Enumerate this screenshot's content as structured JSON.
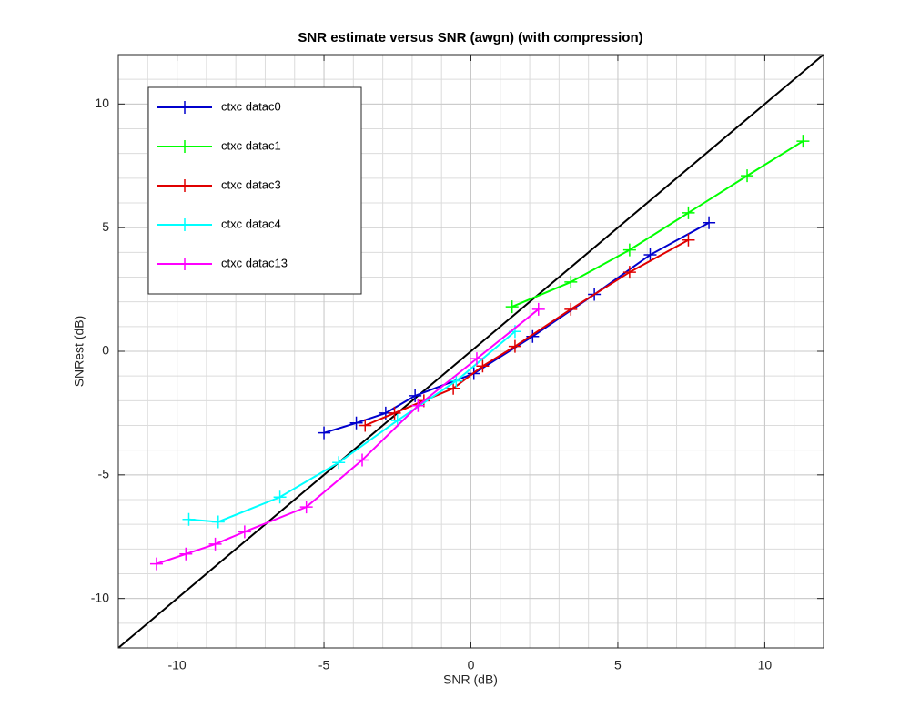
{
  "chart_data": {
    "type": "line",
    "title": "SNR estimate versus SNR (awgn) (with compression)",
    "xlabel": "SNR (dB)",
    "ylabel": "SNRest (dB)",
    "xlim": [
      -12,
      12
    ],
    "ylim": [
      -12,
      12
    ],
    "xticks": [
      -10,
      -5,
      0,
      5,
      10
    ],
    "yticks": [
      -10,
      -5,
      0,
      5,
      10
    ],
    "xminorticks": [
      -12,
      -11,
      -10,
      -9,
      -8,
      -7,
      -6,
      -5,
      -4,
      -3,
      -2,
      -1,
      0,
      1,
      2,
      3,
      4,
      5,
      6,
      7,
      8,
      9,
      10,
      11,
      12
    ],
    "yminorticks": [
      -12,
      -11,
      -10,
      -9,
      -8,
      -7,
      -6,
      -5,
      -4,
      -3,
      -2,
      -1,
      0,
      1,
      2,
      3,
      4,
      5,
      6,
      7,
      8,
      9,
      10,
      11,
      12
    ],
    "grid": true,
    "legend": "upper left",
    "reference_line": {
      "color": "#000000",
      "x": [
        -12,
        12
      ],
      "values": [
        -12,
        12
      ]
    },
    "series": [
      {
        "name": "ctxc datac0",
        "color": "#0000cd",
        "x": [
          -5.0,
          -3.9,
          -2.9,
          -1.9,
          0.1,
          2.1,
          4.2,
          6.1,
          8.1
        ],
        "values": [
          -3.3,
          -2.9,
          -2.5,
          -1.8,
          -0.9,
          0.6,
          2.3,
          3.9,
          5.2
        ]
      },
      {
        "name": "ctxc datac1",
        "color": "#00ff00",
        "x": [
          1.4,
          3.4,
          5.4,
          7.4,
          9.4,
          11.3
        ],
        "values": [
          1.8,
          2.8,
          4.1,
          5.6,
          7.1,
          8.5
        ]
      },
      {
        "name": "ctxc datac3",
        "color": "#e00000",
        "x": [
          -3.6,
          -2.6,
          -1.6,
          -0.6,
          0.4,
          1.5,
          3.4,
          5.4,
          7.4
        ],
        "values": [
          -3.0,
          -2.5,
          -2.0,
          -1.5,
          -0.6,
          0.2,
          1.7,
          3.2,
          4.5
        ]
      },
      {
        "name": "ctxc datac4",
        "color": "#00ffff",
        "x": [
          -9.6,
          -8.6,
          -6.5,
          -4.5,
          -2.5,
          -0.5,
          1.5
        ],
        "values": [
          -6.8,
          -6.9,
          -5.9,
          -4.5,
          -2.8,
          -1.2,
          0.8
        ]
      },
      {
        "name": "ctxc datac13",
        "color": "#ff00ff",
        "x": [
          -10.7,
          -9.7,
          -8.7,
          -7.7,
          -5.6,
          -3.7,
          -1.8,
          0.2,
          2.3
        ],
        "values": [
          -8.6,
          -8.2,
          -7.8,
          -7.3,
          -6.3,
          -4.4,
          -2.2,
          -0.3,
          1.7
        ]
      }
    ]
  }
}
